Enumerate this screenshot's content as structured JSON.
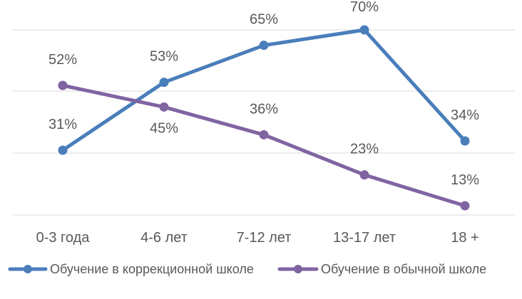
{
  "chart_data": {
    "type": "line",
    "categories": [
      "0-3 года",
      "4-6 лет",
      "7-12 лет",
      "13-17 лет",
      "18 +"
    ],
    "series": [
      {
        "name": "Обучение в коррекционной школе",
        "values": [
          31,
          53,
          65,
          70,
          34
        ],
        "labels": [
          "31%",
          "53%",
          "65%",
          "70%",
          "34%"
        ],
        "color": "#4a7ebb"
      },
      {
        "name": "Обучение в обычной школе",
        "values": [
          52,
          45,
          36,
          23,
          13
        ],
        "labels": [
          "52%",
          "45%",
          "36%",
          "23%",
          "13%"
        ],
        "color": "#8064a2"
      }
    ],
    "ylim": [
      10,
      70
    ],
    "grid": true,
    "legend_position": "bottom"
  }
}
